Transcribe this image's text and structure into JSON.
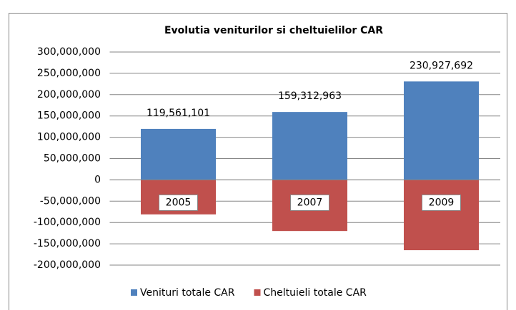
{
  "chart_data": {
    "type": "bar",
    "stacked": true,
    "title": "Evolutia veniturilor si cheltuielilor CAR",
    "categories": [
      "2005",
      "2007",
      "2009"
    ],
    "series": [
      {
        "name": "Venituri totale CAR",
        "color": "#4f81bd",
        "values": [
          119561101,
          159312963,
          230927692
        ],
        "value_labels": [
          "119,561,101",
          "159,312,963",
          "230,927,692"
        ]
      },
      {
        "name": "Cheltuieli totale CAR",
        "color": "#c0504d",
        "values": [
          -81000000,
          -120000000,
          -165000000
        ]
      }
    ],
    "ylim": [
      -200000000,
      300000000
    ],
    "yticks": [
      {
        "value": -200000000,
        "label": "-200,000,000"
      },
      {
        "value": -150000000,
        "label": "-150,000,000"
      },
      {
        "value": -100000000,
        "label": "-100,000,000"
      },
      {
        "value": -50000000,
        "label": "-50,000,000"
      },
      0,
      {
        "value": 50000000,
        "label": "50,000,000"
      },
      {
        "value": 100000000,
        "label": "100,000,000"
      },
      {
        "value": 150000000,
        "label": "150,000,000"
      },
      {
        "value": 200000000,
        "label": "200,000,000"
      },
      {
        "value": 250000000,
        "label": "250,000,000"
      },
      {
        "value": 300000000,
        "label": "300,000,000"
      }
    ],
    "grid": true,
    "legend": "bottom"
  }
}
